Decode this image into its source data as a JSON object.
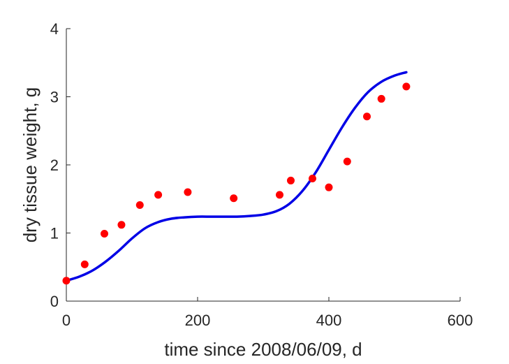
{
  "chart_data": {
    "type": "scatter",
    "title": "",
    "xlabel": "time since 2008/06/09, d",
    "ylabel": "dry tissue weight, g",
    "xlim": [
      0,
      600
    ],
    "ylim": [
      0,
      4
    ],
    "xticks": [
      0,
      200,
      400,
      600
    ],
    "yticks": [
      0,
      1,
      2,
      3,
      4
    ],
    "xtick_labels": [
      "0",
      "200",
      "400",
      "600"
    ],
    "ytick_labels": [
      "0",
      "1",
      "2",
      "3",
      "4"
    ],
    "grid": false,
    "series": [
      {
        "type": "scatter",
        "color": "#ff0000",
        "x": [
          0,
          28,
          58,
          84,
          112,
          140,
          185,
          255,
          325,
          342,
          375,
          400,
          428,
          458,
          480,
          518
        ],
        "y": [
          0.3,
          0.54,
          0.99,
          1.12,
          1.41,
          1.56,
          1.6,
          1.51,
          1.56,
          1.77,
          1.8,
          1.67,
          2.05,
          2.71,
          2.97,
          3.15
        ]
      },
      {
        "type": "line",
        "color": "#0000e6",
        "x": [
          0,
          20,
          40,
          60,
          80,
          100,
          120,
          140,
          160,
          180,
          200,
          220,
          240,
          260,
          280,
          300,
          320,
          340,
          360,
          380,
          400,
          420,
          440,
          460,
          480,
          500,
          518
        ],
        "y": [
          0.3,
          0.36,
          0.45,
          0.58,
          0.74,
          0.92,
          1.07,
          1.16,
          1.21,
          1.23,
          1.24,
          1.24,
          1.24,
          1.24,
          1.25,
          1.27,
          1.32,
          1.43,
          1.62,
          1.89,
          2.22,
          2.55,
          2.84,
          3.07,
          3.22,
          3.31,
          3.36
        ]
      }
    ]
  }
}
